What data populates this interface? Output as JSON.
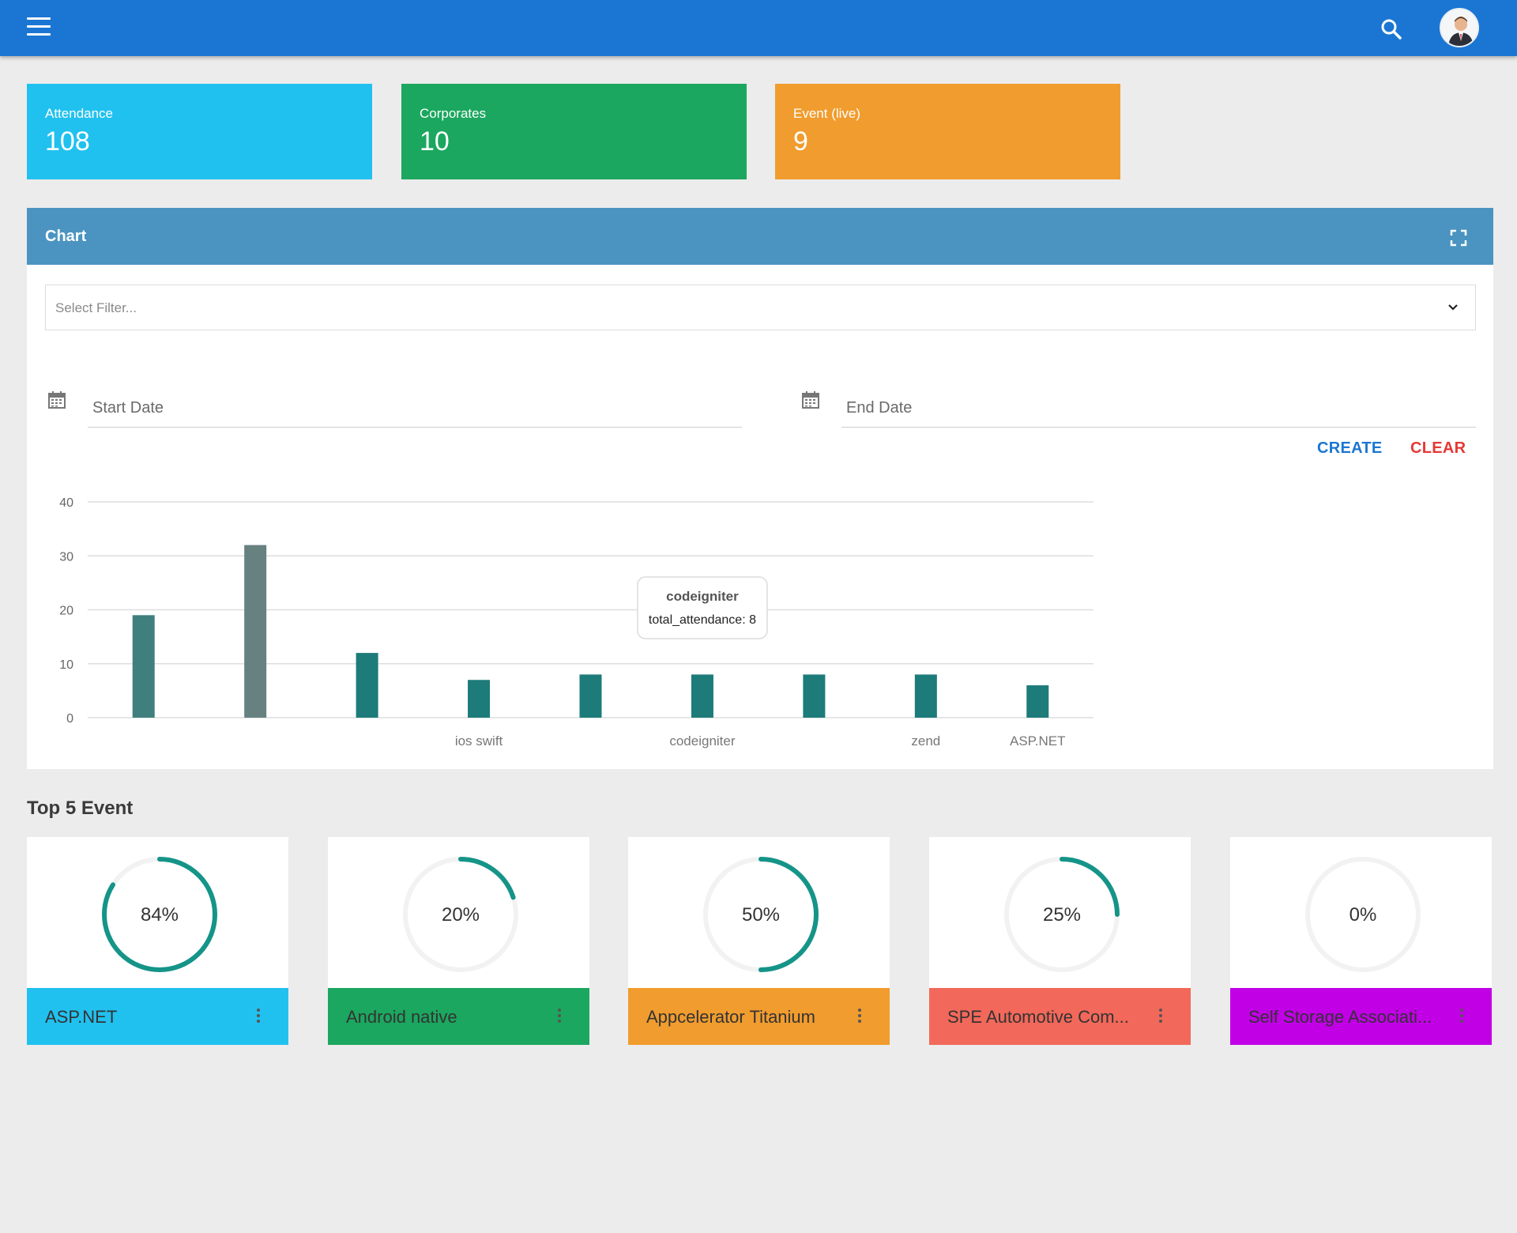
{
  "stats": [
    {
      "label": "Attendance",
      "value": "108",
      "color": "#21c1ef"
    },
    {
      "label": "Corporates",
      "value": "10",
      "color": "#1ba75f"
    },
    {
      "label": "Event (live)",
      "value": "9",
      "color": "#f19c2e"
    }
  ],
  "panel": {
    "title": "Chart",
    "filter_placeholder": "Select Filter...",
    "start_date_label": "Start Date",
    "end_date_label": "End Date",
    "create_label": "CREATE",
    "clear_label": "CLEAR"
  },
  "chart_data": {
    "type": "bar",
    "categories": [
      "",
      "",
      "",
      "ios swift",
      "",
      "codeigniter",
      "",
      "zend",
      "ASP.NET"
    ],
    "series": [
      {
        "values": [
          19,
          32,
          12,
          7,
          8,
          8,
          8,
          8,
          6
        ]
      }
    ],
    "bar_colors": [
      "#3f7f7e",
      "#668180",
      "#1d7b7a",
      "#1d7b7a",
      "#1d7b7a",
      "#1d7b7a",
      "#1d7b7a",
      "#1d7b7a",
      "#1d7b7a"
    ],
    "yticks": [
      0,
      10,
      20,
      30,
      40
    ],
    "ylim": [
      0,
      40
    ],
    "grid": true,
    "tooltip": {
      "title": "codeigniter",
      "body": "total_attendance: 8"
    }
  },
  "top5": {
    "title": "Top 5 Event",
    "events": [
      {
        "name": "ASP.NET",
        "percent": "84%",
        "value": 84,
        "color": "#21c1ef"
      },
      {
        "name": "Android native",
        "percent": "20%",
        "value": 20,
        "color": "#1ba75f"
      },
      {
        "name": "Appcelerator Titanium",
        "percent": "50%",
        "value": 50,
        "color": "#f19c2e"
      },
      {
        "name": "SPE Automotive Com...",
        "percent": "25%",
        "value": 25,
        "color": "#f2685a"
      },
      {
        "name": "Self Storage Associati...",
        "percent": "0%",
        "value": 0,
        "color": "#c100e6"
      }
    ],
    "ring_color": "#159488",
    "track_color": "#f2f2f2"
  }
}
